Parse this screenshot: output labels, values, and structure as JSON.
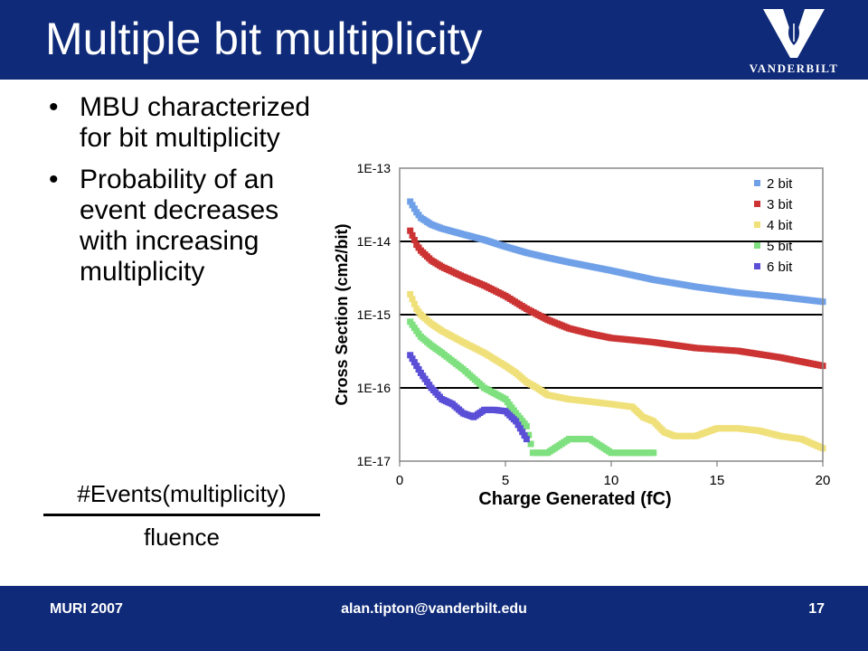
{
  "slide": {
    "title": "Multiple bit multiplicity",
    "logo_text": "VANDERBILT",
    "bullets": [
      "MBU characterized for bit multiplicity",
      "Probability of an event decreases with increasing multiplicity"
    ],
    "formula": {
      "numerator": "#Events(multiplicity)",
      "denominator": "fluence"
    }
  },
  "footer": {
    "left": "MURI 2007",
    "center": "alan.tipton@vanderbilt.edu",
    "right": "17"
  },
  "colors": {
    "header_blue": "#0f2a78",
    "series_2bit": "#6fa0e8",
    "series_3bit": "#cc3333",
    "series_4bit": "#f0e07a",
    "series_5bit": "#7ee07e",
    "series_6bit": "#5a4fd6"
  },
  "chart_data": {
    "type": "scatter",
    "xlabel": "Charge Generated (fC)",
    "ylabel": "Cross Section (cm2/bit)",
    "x_ticks": [
      "0",
      "5",
      "10",
      "15",
      "20"
    ],
    "y_ticks": [
      "1E-17",
      "1E-16",
      "1E-15",
      "1E-14",
      "1E-13"
    ],
    "xlim": [
      0,
      20
    ],
    "ylim": [
      1e-17,
      1e-13
    ],
    "yscale": "log",
    "grid": "horizontal",
    "legend_position": "top-right",
    "series": [
      {
        "name": "2 bit",
        "color": "#6fa0e8",
        "marker": "diamond",
        "points": [
          [
            0.5,
            3.5e-14
          ],
          [
            0.8,
            2.5e-14
          ],
          [
            1,
            2.1e-14
          ],
          [
            1.5,
            1.7e-14
          ],
          [
            2,
            1.5e-14
          ],
          [
            3,
            1.25e-14
          ],
          [
            4,
            1.05e-14
          ],
          [
            5,
            8.5e-15
          ],
          [
            6,
            7e-15
          ],
          [
            7,
            6e-15
          ],
          [
            8,
            5.2e-15
          ],
          [
            10,
            4e-15
          ],
          [
            12,
            3e-15
          ],
          [
            14,
            2.4e-15
          ],
          [
            16,
            2e-15
          ],
          [
            18,
            1.75e-15
          ],
          [
            20,
            1.5e-15
          ]
        ]
      },
      {
        "name": "3 bit",
        "color": "#cc3333",
        "marker": "square",
        "points": [
          [
            0.5,
            1.4e-14
          ],
          [
            0.8,
            9e-15
          ],
          [
            1,
            7.5e-15
          ],
          [
            1.5,
            5.5e-15
          ],
          [
            2,
            4.5e-15
          ],
          [
            3,
            3.3e-15
          ],
          [
            4,
            2.5e-15
          ],
          [
            5,
            1.8e-15
          ],
          [
            6,
            1.2e-15
          ],
          [
            7,
            8.5e-16
          ],
          [
            8,
            6.5e-16
          ],
          [
            9,
            5.5e-16
          ],
          [
            10,
            4.8e-16
          ],
          [
            11,
            4.5e-16
          ],
          [
            12,
            4.2e-16
          ],
          [
            14,
            3.5e-16
          ],
          [
            16,
            3.2e-16
          ],
          [
            18,
            2.6e-16
          ],
          [
            20,
            2e-16
          ]
        ]
      },
      {
        "name": "4 bit",
        "color": "#f0e07a",
        "marker": "triangle",
        "points": [
          [
            0.5,
            1.9e-15
          ],
          [
            0.8,
            1.2e-15
          ],
          [
            1,
            1e-15
          ],
          [
            1.5,
            7.5e-16
          ],
          [
            2,
            6e-16
          ],
          [
            3,
            4.2e-16
          ],
          [
            4,
            3e-16
          ],
          [
            5,
            2e-16
          ],
          [
            5.5,
            1.6e-16
          ],
          [
            6,
            1.2e-16
          ],
          [
            6.5,
            1e-16
          ],
          [
            7,
            8e-17
          ],
          [
            8,
            7e-17
          ],
          [
            9,
            6.5e-17
          ],
          [
            10,
            6e-17
          ],
          [
            11,
            5.5e-17
          ],
          [
            11.5,
            4e-17
          ],
          [
            12,
            3.5e-17
          ],
          [
            12.5,
            2.5e-17
          ],
          [
            13,
            2.2e-17
          ],
          [
            14,
            2.2e-17
          ],
          [
            15,
            2.8e-17
          ],
          [
            16,
            2.8e-17
          ],
          [
            17,
            2.6e-17
          ],
          [
            18,
            2.2e-17
          ],
          [
            19,
            2e-17
          ],
          [
            20,
            1.5e-17
          ]
        ]
      },
      {
        "name": "5 bit",
        "color": "#7ee07e",
        "marker": "x",
        "points": [
          [
            0.5,
            8e-16
          ],
          [
            0.8,
            6e-16
          ],
          [
            1,
            5e-16
          ],
          [
            1.5,
            3.8e-16
          ],
          [
            2,
            3e-16
          ],
          [
            3,
            1.8e-16
          ],
          [
            4,
            1e-16
          ],
          [
            5,
            7e-17
          ],
          [
            5.5,
            4.5e-17
          ],
          [
            6,
            3e-17
          ],
          [
            6.3,
            1.3e-17
          ],
          [
            7,
            1.3e-17
          ],
          [
            8,
            2e-17
          ],
          [
            9,
            2e-17
          ],
          [
            10,
            1.3e-17
          ],
          [
            11,
            1.3e-17
          ],
          [
            12,
            1.3e-17
          ]
        ]
      },
      {
        "name": "6 bit",
        "color": "#5a4fd6",
        "marker": "star",
        "points": [
          [
            0.5,
            2.8e-16
          ],
          [
            0.8,
            2e-16
          ],
          [
            1,
            1.6e-16
          ],
          [
            1.5,
            1e-16
          ],
          [
            2,
            7e-17
          ],
          [
            2.5,
            6e-17
          ],
          [
            3,
            4.5e-17
          ],
          [
            3.5,
            4e-17
          ],
          [
            4,
            5e-17
          ],
          [
            4.5,
            5e-17
          ],
          [
            5,
            4.8e-17
          ],
          [
            5.5,
            3.5e-17
          ],
          [
            6,
            2e-17
          ]
        ]
      }
    ]
  }
}
